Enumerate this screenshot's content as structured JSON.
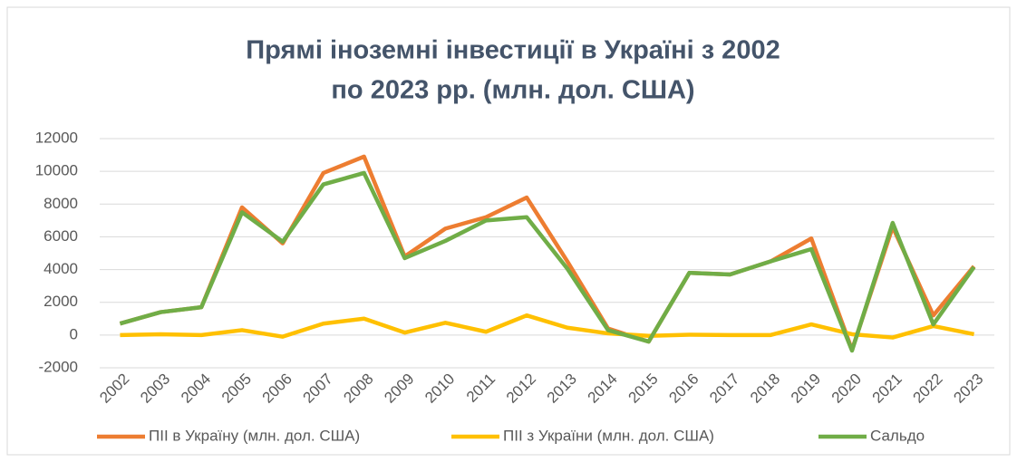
{
  "chart_data": {
    "type": "line",
    "title": [
      "Прямі іноземні інвестиції в Україні з 2002",
      "по 2023 рр. (млн. дол. США)"
    ],
    "categories": [
      "2002",
      "2003",
      "2004",
      "2005",
      "2006",
      "2007",
      "2008",
      "2009",
      "2010",
      "2011",
      "2012",
      "2013",
      "2014",
      "2015",
      "2016",
      "2017",
      "2018",
      "2019",
      "2020",
      "2021",
      "2022",
      "2023"
    ],
    "series": [
      {
        "name": "ПІІ в Україну (млн. дол. США)",
        "color": "#ed7d31",
        "values": [
          700,
          1400,
          1700,
          7800,
          5600,
          9900,
          10900,
          4800,
          6500,
          7200,
          8400,
          4500,
          400,
          -400,
          3800,
          3700,
          4500,
          5900,
          -900,
          6600,
          1200,
          4200
        ]
      },
      {
        "name": "ПІІ з України (млн. дол. США)",
        "color": "#ffc000",
        "values": [
          0,
          50,
          0,
          300,
          -100,
          700,
          1000,
          150,
          750,
          200,
          1200,
          450,
          100,
          -50,
          20,
          0,
          0,
          650,
          50,
          -150,
          550,
          50
        ]
      },
      {
        "name": "Сальдо",
        "color": "#70ad47",
        "values": [
          700,
          1400,
          1700,
          7500,
          5700,
          9200,
          9900,
          4700,
          5750,
          7000,
          7200,
          4050,
          300,
          -400,
          3800,
          3700,
          4500,
          5250,
          -950,
          6850,
          650,
          4150
        ]
      }
    ],
    "ylim": [
      -2000,
      12000
    ],
    "yticks": [
      -2000,
      0,
      2000,
      4000,
      6000,
      8000,
      10000,
      12000
    ],
    "grid": true,
    "legend": "bottom"
  }
}
